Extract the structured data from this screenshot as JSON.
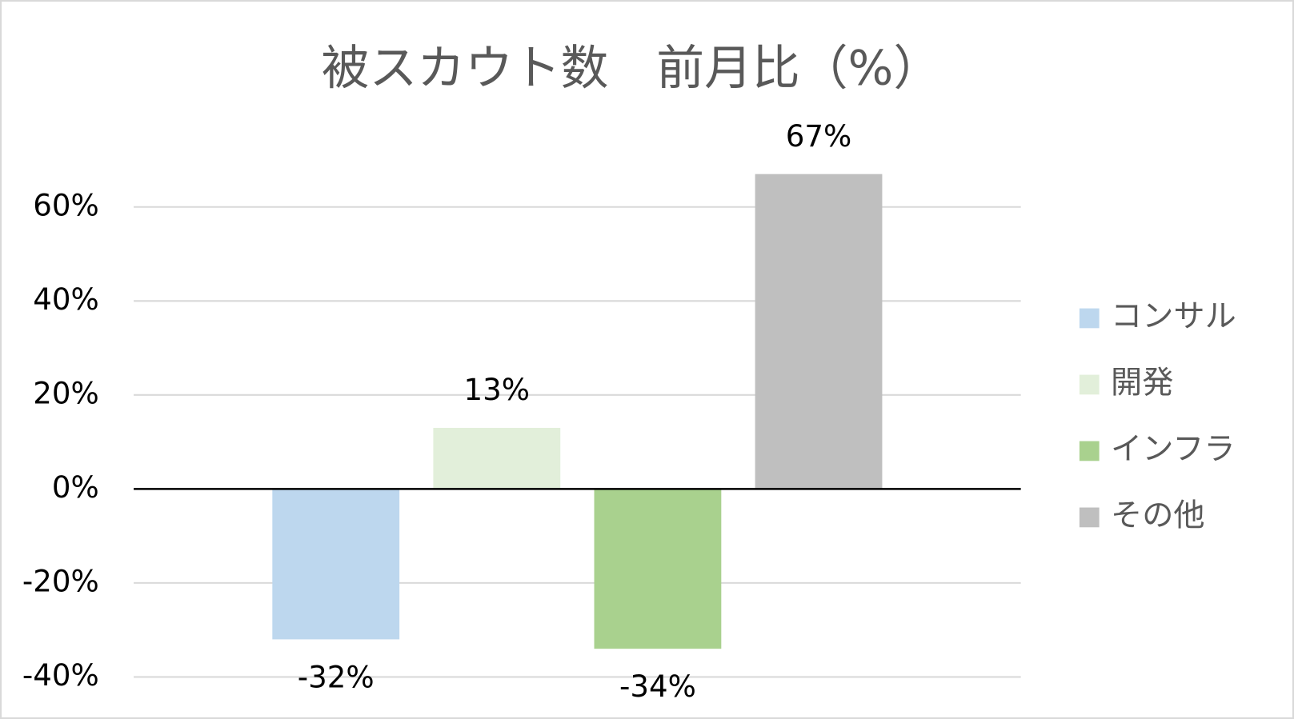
{
  "chart_data": {
    "type": "bar",
    "title": "被スカウト数　前月比（%）",
    "categories": [
      null
    ],
    "series": [
      {
        "name": "コンサル",
        "color": "#bdd7ee",
        "values": [
          -32
        ],
        "value_labels": [
          "-32%"
        ]
      },
      {
        "name": "開発",
        "color": "#e2efda",
        "values": [
          13
        ],
        "value_labels": [
          "13%"
        ]
      },
      {
        "name": "インフラ",
        "color": "#a9d18e",
        "values": [
          -34
        ],
        "value_labels": [
          "-34%"
        ]
      },
      {
        "name": "その他",
        "color": "#bfbfbf",
        "values": [
          67
        ],
        "value_labels": [
          "67%"
        ]
      }
    ],
    "ylim": [
      -40,
      70
    ],
    "yticks": [
      {
        "value": -40,
        "label": "-40%"
      },
      {
        "value": -20,
        "label": "-20%"
      },
      {
        "value": 0,
        "label": "0%"
      },
      {
        "value": 20,
        "label": "20%"
      },
      {
        "value": 40,
        "label": "40%"
      },
      {
        "value": 60,
        "label": "60%"
      }
    ],
    "grid": true,
    "legend": "right"
  }
}
